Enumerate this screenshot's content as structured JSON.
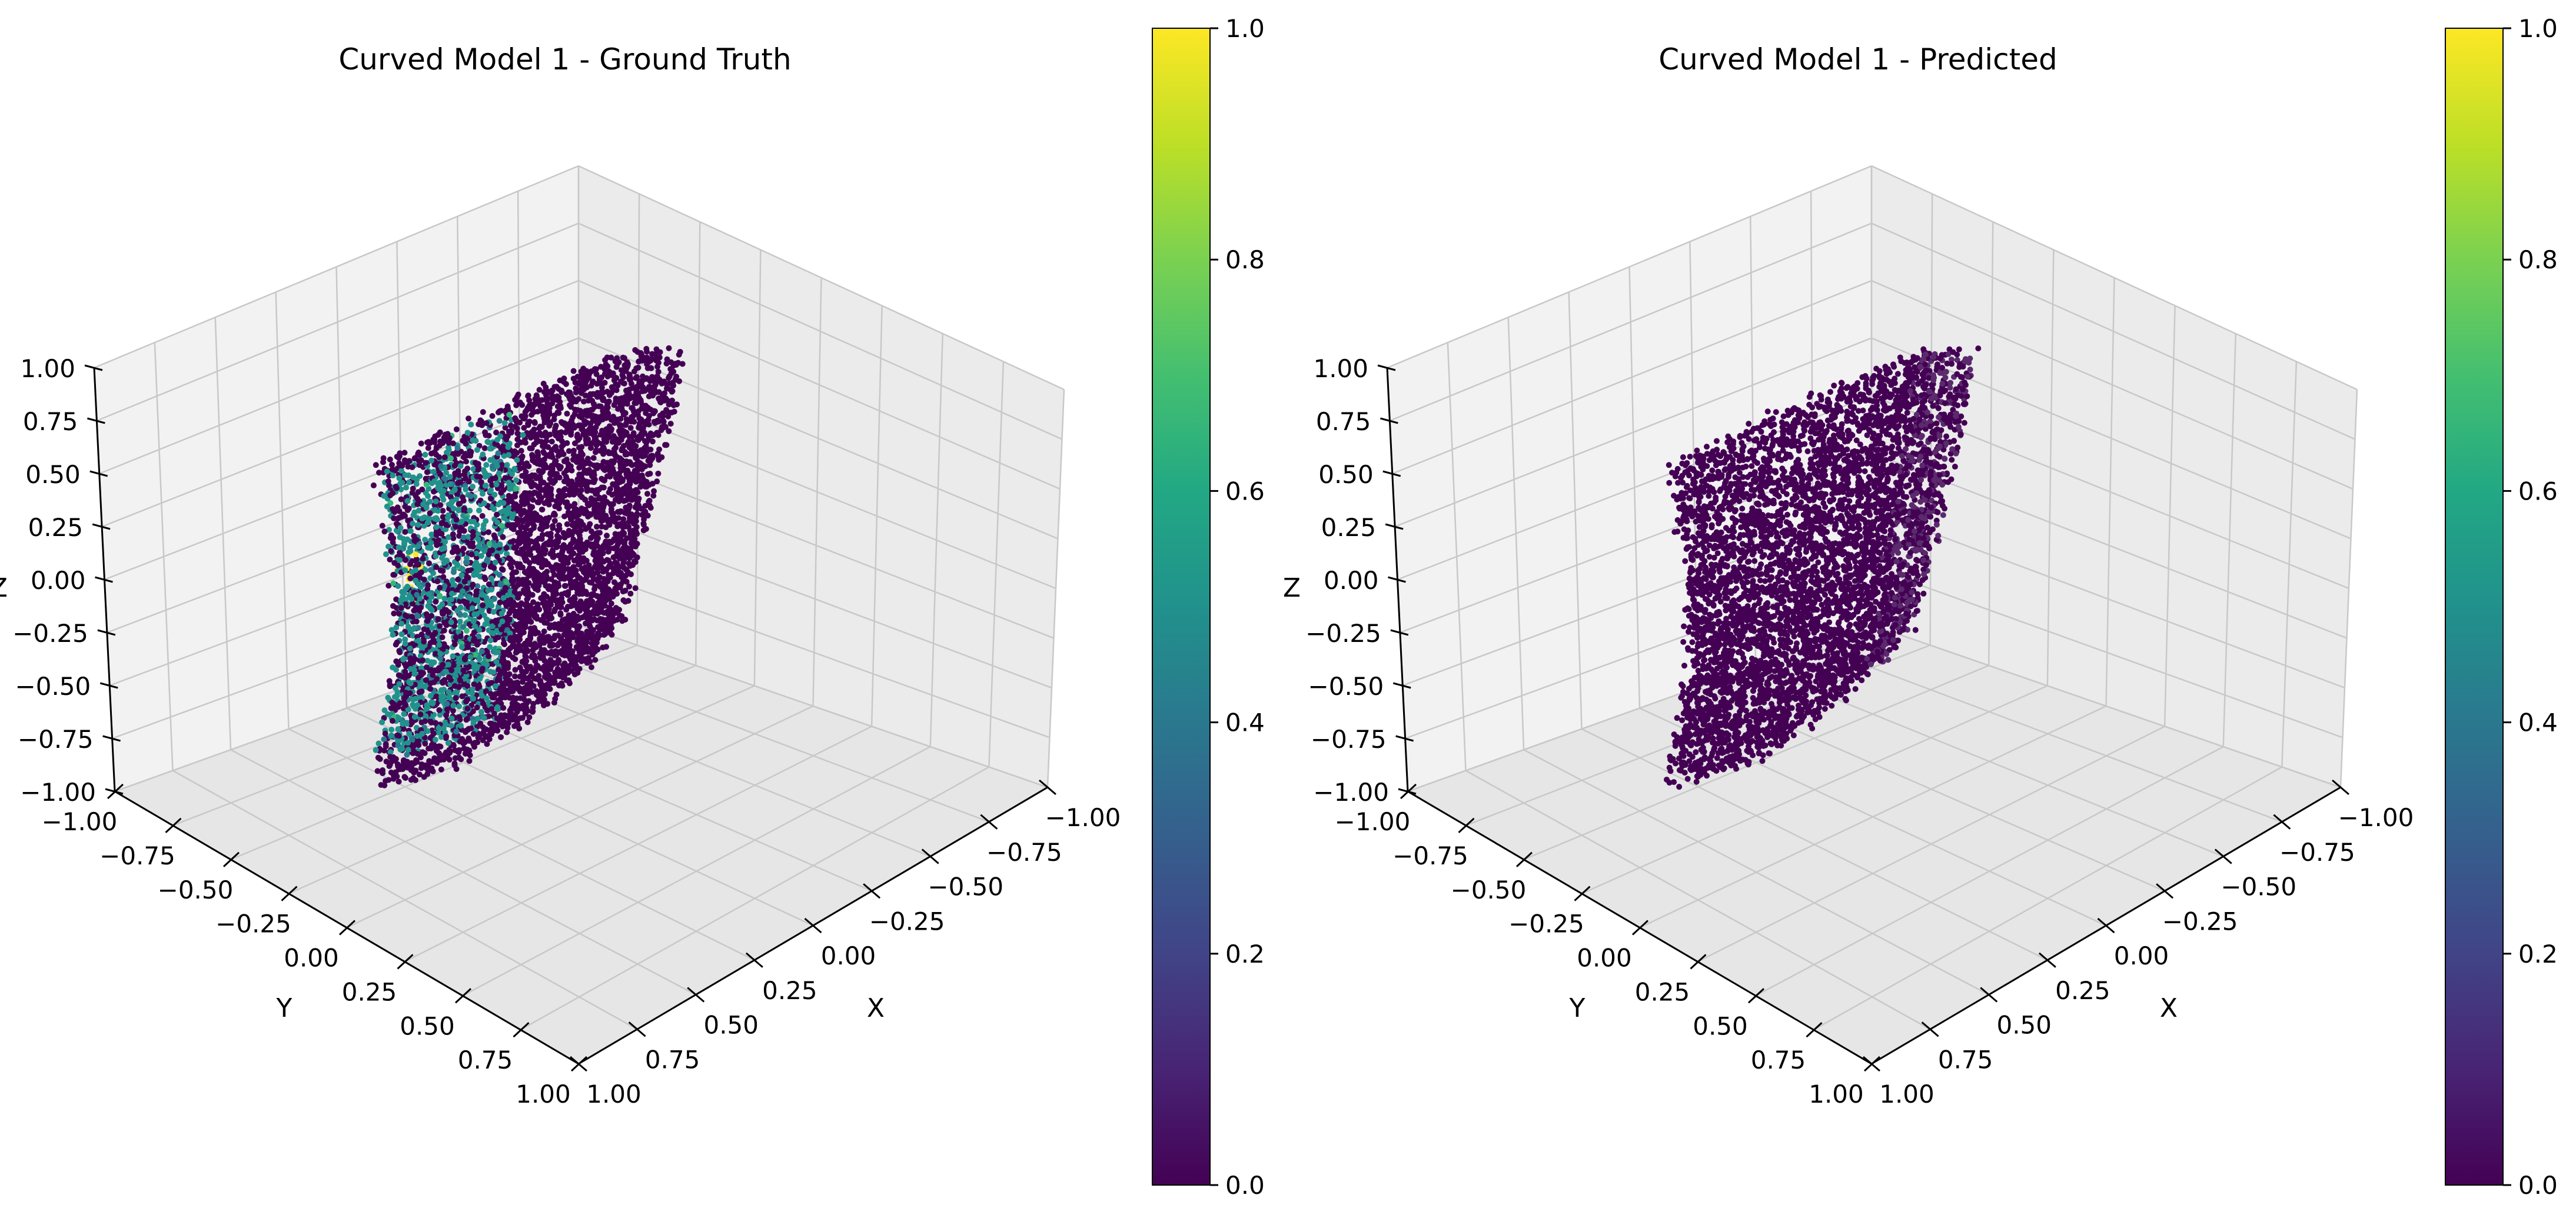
{
  "chart_data": [
    {
      "type": "scatter",
      "projection": "3d",
      "title": "Curved Model 1 - Ground Truth",
      "xlabel": "X",
      "ylabel": "Y",
      "zlabel": "Z",
      "xlim": [
        -1.0,
        1.0
      ],
      "ylim": [
        -1.0,
        1.0
      ],
      "zlim": [
        -1.0,
        1.0
      ],
      "xticks": [
        "−1.00",
        "−0.75",
        "−0.50",
        "−0.25",
        "0.00",
        "0.25",
        "0.50",
        "0.75",
        "1.00"
      ],
      "yticks": [
        "−1.00",
        "−0.75",
        "−0.50",
        "−0.25",
        "0.00",
        "0.25",
        "0.50",
        "0.75",
        "1.00"
      ],
      "zticks": [
        "−1.00",
        "−0.75",
        "−0.50",
        "−0.25",
        "0.00",
        "0.25",
        "0.50",
        "0.75",
        "1.00"
      ],
      "grid": true,
      "colormap": "viridis",
      "colorbar": {
        "range": [
          0.0,
          1.0
        ],
        "ticks": [
          "0.0",
          "0.2",
          "0.4",
          "0.6",
          "0.8",
          "1.0"
        ]
      },
      "colors": {
        "low": "#440154",
        "mid": "#21918c",
        "high": "#fde725"
      },
      "point_cloud": {
        "shape": "curved sheet",
        "x_range": [
          -0.45,
          0.45
        ],
        "y_range": [
          -0.5,
          0.15
        ],
        "z_range": [
          -1.0,
          1.0
        ],
        "value_distribution": "mostly 0.0 with a cluster of values near 0.5–0.6 on the front face and a few points near 1.0"
      }
    },
    {
      "type": "scatter",
      "projection": "3d",
      "title": "Curved Model 1 - Predicted",
      "xlabel": "X",
      "ylabel": "Y",
      "zlabel": "Z",
      "xlim": [
        -1.0,
        1.0
      ],
      "ylim": [
        -1.0,
        1.0
      ],
      "zlim": [
        -1.0,
        1.0
      ],
      "xticks": [
        "−1.00",
        "−0.75",
        "−0.50",
        "−0.25",
        "0.00",
        "0.25",
        "0.50",
        "0.75",
        "1.00"
      ],
      "yticks": [
        "−1.00",
        "−0.75",
        "−0.50",
        "−0.25",
        "0.00",
        "0.25",
        "0.50",
        "0.75",
        "1.00"
      ],
      "zticks": [
        "−1.00",
        "−0.75",
        "−0.50",
        "−0.25",
        "0.00",
        "0.25",
        "0.50",
        "0.75",
        "1.00"
      ],
      "grid": true,
      "colormap": "viridis",
      "colorbar": {
        "range": [
          0.0,
          1.0
        ],
        "ticks": [
          "0.0",
          "0.2",
          "0.4",
          "0.6",
          "0.8",
          "1.0"
        ]
      },
      "colors": {
        "low": "#440154",
        "mid": "#21918c",
        "high": "#fde725"
      },
      "point_cloud": {
        "shape": "curved sheet",
        "x_range": [
          -0.45,
          0.45
        ],
        "y_range": [
          -0.5,
          0.15
        ],
        "z_range": [
          -1.0,
          1.0
        ],
        "value_distribution": "all values near 0.0"
      }
    }
  ]
}
